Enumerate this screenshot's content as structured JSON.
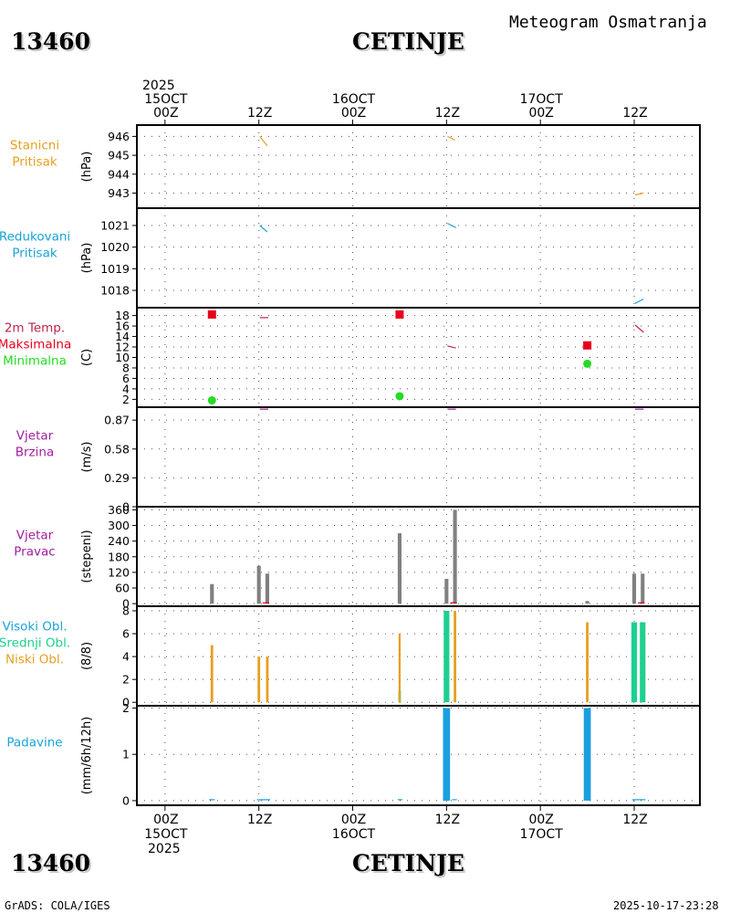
{
  "header": {
    "station_id": "13460",
    "station_name": "CETINJE",
    "title": "Meteogram Osmatranja"
  },
  "footer": {
    "left": "GrADS: COLA/IGES",
    "right": "2025-10-17-23:28"
  },
  "colors": {
    "orange": "#e6a020",
    "blue": "#1aa3d6",
    "red": "#e8001c",
    "maroon": "#c0204a",
    "green": "#22dd22",
    "purple": "#a020a0",
    "gray": "#808080",
    "teal": "#1ed090",
    "precip": "#1a9fe0"
  },
  "chart_data": {
    "type": "meteogram",
    "x_unit": "hours since 15OCT 00Z",
    "x_range": [
      -6,
      114
    ],
    "x_ticks": [
      {
        "h": 0,
        "top": [
          "2025",
          "15OCT",
          "00Z"
        ],
        "bottom": [
          "00Z",
          "15OCT",
          "2025"
        ]
      },
      {
        "h": 20,
        "top": [
          "12Z"
        ],
        "bottom": [
          "12Z"
        ]
      },
      {
        "h": 40,
        "top": [
          "16OCT",
          "00Z"
        ],
        "bottom": [
          "00Z",
          "16OCT"
        ]
      },
      {
        "h": 60,
        "top": [
          "12Z"
        ],
        "bottom": [
          "12Z"
        ]
      },
      {
        "h": 80,
        "top": [
          "17OCT",
          "00Z"
        ],
        "bottom": [
          "00Z",
          "17OCT"
        ]
      },
      {
        "h": 100,
        "top": [
          "12Z"
        ],
        "bottom": [
          "12Z"
        ]
      }
    ],
    "panels": [
      {
        "id": "stanicni",
        "labels": [
          {
            "text": "Stanicni",
            "color": "#e6a020"
          },
          {
            "text": "Pritisak",
            "color": "#e6a020"
          }
        ],
        "unit": "(hPa)",
        "ylim": [
          942.2,
          946.6
        ],
        "yticks": [
          943,
          944,
          945,
          946
        ],
        "lines": [
          {
            "color": "#e6a020",
            "pts": [
              [
                20.2,
                946.0
              ],
              [
                21.8,
                945.5
              ]
            ]
          },
          {
            "color": "#e6a020",
            "pts": [
              [
                60.2,
                946.0
              ],
              [
                61.8,
                945.8
              ]
            ]
          },
          {
            "color": "#e6a020",
            "pts": [
              [
                100.2,
                942.9
              ],
              [
                102.0,
                943.0
              ]
            ]
          }
        ]
      },
      {
        "id": "redukovani",
        "labels": [
          {
            "text": "Redukovani",
            "color": "#1aa3d6"
          },
          {
            "text": "Pritisak",
            "color": "#1aa3d6"
          }
        ],
        "unit": "(hPa)",
        "ylim": [
          1017.2,
          1021.8
        ],
        "yticks": [
          1018,
          1019,
          1020,
          1021
        ],
        "lines": [
          {
            "color": "#1aa3d6",
            "pts": [
              [
                20.2,
                1021.0
              ],
              [
                21.8,
                1020.7
              ]
            ]
          },
          {
            "color": "#1aa3d6",
            "pts": [
              [
                60.2,
                1021.1
              ],
              [
                62.0,
                1020.9
              ]
            ]
          },
          {
            "color": "#1aa3d6",
            "pts": [
              [
                100.2,
                1017.4
              ],
              [
                102.0,
                1017.6
              ]
            ]
          }
        ]
      },
      {
        "id": "temperatura",
        "labels": [
          {
            "text": "2m Temp.",
            "color": "#c0204a"
          },
          {
            "text": "Maksimalna",
            "color": "#e8001c"
          },
          {
            "text": "Minimalna",
            "color": "#22dd22"
          }
        ],
        "unit": "(C)",
        "ylim": [
          0.5,
          19.5
        ],
        "yticks": [
          2,
          4,
          6,
          8,
          10,
          12,
          14,
          16,
          18
        ],
        "lines": [
          {
            "color": "#c0204a",
            "pts": [
              [
                20.2,
                17.6
              ],
              [
                22.0,
                17.6
              ]
            ]
          },
          {
            "color": "#c0204a",
            "pts": [
              [
                60.2,
                12.2
              ],
              [
                62.0,
                11.8
              ]
            ]
          },
          {
            "color": "#c0204a",
            "pts": [
              [
                100.2,
                16.2
              ],
              [
                102.0,
                14.8
              ]
            ]
          }
        ],
        "max": [
          {
            "h": 10,
            "v": 18.2
          },
          {
            "h": 50,
            "v": 18.2
          },
          {
            "h": 90,
            "v": 12.3
          }
        ],
        "min": [
          {
            "h": 10,
            "v": 1.8
          },
          {
            "h": 50,
            "v": 2.6
          },
          {
            "h": 90,
            "v": 8.8
          }
        ]
      },
      {
        "id": "vjetar_brzina",
        "labels": [
          {
            "text": "Vjetar",
            "color": "#a020a0"
          },
          {
            "text": "Brzina",
            "color": "#a020a0"
          }
        ],
        "unit": "(m/s)",
        "ylim": [
          0,
          1.0
        ],
        "yticks": [
          0,
          0.29,
          0.58,
          0.87
        ],
        "ytick_labels": [
          "0",
          "0.29",
          "0.58",
          "0.87"
        ],
        "lines": [
          {
            "color": "#a020a0",
            "pts": [
              [
                20.2,
                0.98
              ],
              [
                22.0,
                0.98
              ]
            ]
          },
          {
            "color": "#a020a0",
            "pts": [
              [
                60.2,
                0.98
              ],
              [
                62.0,
                0.98
              ]
            ]
          },
          {
            "color": "#a020a0",
            "pts": [
              [
                100.2,
                0.98
              ],
              [
                102.0,
                0.98
              ]
            ]
          }
        ]
      },
      {
        "id": "vjetar_pravac",
        "labels": [
          {
            "text": "Vjetar",
            "color": "#a020a0"
          },
          {
            "text": "Pravac",
            "color": "#a020a0"
          }
        ],
        "unit": "(stepeni)",
        "ylim": [
          -10,
          372
        ],
        "yticks": [
          0,
          60,
          120,
          180,
          240,
          300,
          360
        ],
        "bars": [
          {
            "h": 10,
            "v": 75,
            "color": "#808080"
          },
          {
            "h": 20,
            "v": 145,
            "color": "#808080"
          },
          {
            "h": 21.8,
            "v": 115,
            "color": "#808080"
          },
          {
            "h": 50,
            "v": 270,
            "color": "#808080"
          },
          {
            "h": 60,
            "v": 95,
            "color": "#808080"
          },
          {
            "h": 61.8,
            "v": 360,
            "color": "#808080"
          },
          {
            "h": 90,
            "v": 10,
            "color": "#808080"
          },
          {
            "h": 100,
            "v": 115,
            "color": "#808080"
          },
          {
            "h": 101.8,
            "v": 115,
            "color": "#808080"
          }
        ],
        "lines": [
          {
            "color": "#e8001c",
            "pts": [
              [
                20.8,
                3
              ],
              [
                22.2,
                3
              ]
            ]
          },
          {
            "color": "#e8001c",
            "pts": [
              [
                60.8,
                3
              ],
              [
                62.2,
                3
              ]
            ]
          },
          {
            "color": "#e8001c",
            "pts": [
              [
                100.8,
                3
              ],
              [
                102.2,
                3
              ]
            ]
          }
        ]
      },
      {
        "id": "oblacnost",
        "labels": [
          {
            "text": "Visoki Obl.",
            "color": "#1aa3d6"
          },
          {
            "text": "Srednji Obl.",
            "color": "#1ed090"
          },
          {
            "text": "Niski Obl.",
            "color": "#e6a020"
          }
        ],
        "unit": "(8/8)",
        "ylim": [
          -0.3,
          8.4
        ],
        "yticks": [
          0,
          2,
          4,
          6,
          8
        ],
        "bars": [
          {
            "h": 10,
            "v": 5,
            "color": "#e6a020",
            "w": 0.55
          },
          {
            "h": 20,
            "v": 4,
            "color": "#e6a020",
            "w": 0.55
          },
          {
            "h": 21.8,
            "v": 4,
            "color": "#e6a020",
            "w": 0.55
          },
          {
            "h": 50,
            "v": 1,
            "color": "#1ed090",
            "w": 0.55
          },
          {
            "h": 50,
            "v": 6,
            "color": "#e6a020",
            "w": 0.45
          },
          {
            "h": 60,
            "v": 8,
            "color": "#1ed090",
            "w": 1.2
          },
          {
            "h": 61.8,
            "v": 8,
            "color": "#e6a020",
            "w": 0.55
          },
          {
            "h": 90,
            "v": 7,
            "color": "#e6a020",
            "w": 0.55
          },
          {
            "h": 100,
            "v": 7,
            "color": "#1ed090",
            "w": 1.2
          },
          {
            "h": 101.8,
            "v": 7,
            "color": "#1ed090",
            "w": 1.2
          }
        ]
      },
      {
        "id": "padavine",
        "labels": [
          {
            "text": "Padavine",
            "color": "#1aa3d6"
          }
        ],
        "unit": "(mm/6h/12h)",
        "ylim": [
          -0.1,
          2.05
        ],
        "yticks": [
          0,
          1,
          2
        ],
        "bars": [
          {
            "h": 60,
            "v": 2.0,
            "color": "#1a9fe0",
            "w": 1.5
          },
          {
            "h": 90,
            "v": 2.0,
            "color": "#1a9fe0",
            "w": 1.5
          }
        ],
        "lines": [
          {
            "color": "#1a9fe0",
            "pts": [
              [
                9.4,
                0.02
              ],
              [
                10.6,
                0.02
              ]
            ]
          },
          {
            "color": "#1a9fe0",
            "pts": [
              [
                19.6,
                0.02
              ],
              [
                22.4,
                0.02
              ]
            ]
          },
          {
            "color": "#1a9fe0",
            "pts": [
              [
                49.6,
                0.02
              ],
              [
                50.6,
                0.02
              ]
            ]
          },
          {
            "color": "#1a9fe0",
            "pts": [
              [
                61.2,
                0.02
              ],
              [
                62.2,
                0.02
              ]
            ]
          },
          {
            "color": "#1a9fe0",
            "pts": [
              [
                99.6,
                0.02
              ],
              [
                102.4,
                0.02
              ]
            ]
          }
        ]
      }
    ]
  }
}
